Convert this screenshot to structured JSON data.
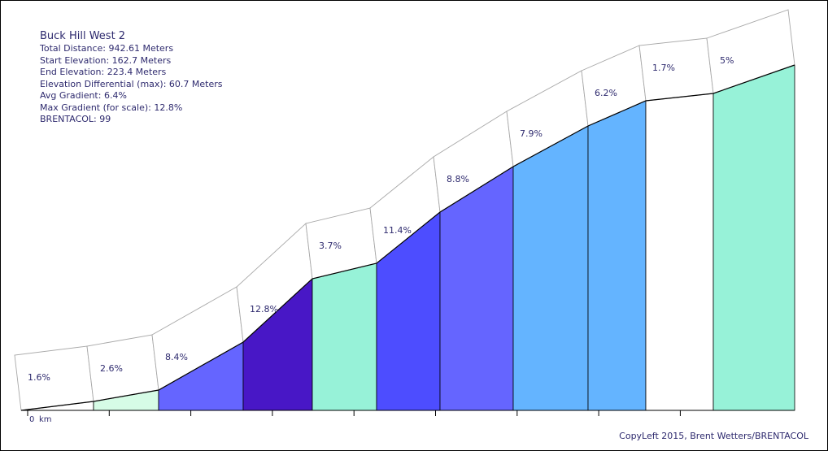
{
  "info": {
    "title": "Buck Hill West 2",
    "total_distance": "Total Distance: 942.61 Meters",
    "start_elevation": "Start Elevation: 162.7 Meters",
    "end_elevation": "End Elevation: 223.4 Meters",
    "elevation_diff": "Elevation Differential (max): 60.7 Meters",
    "avg_gradient": "Avg Gradient: 6.4%",
    "max_gradient": "Max Gradient (for scale): 12.8%",
    "brentacol": "BRENTACOL: 99"
  },
  "credit": "CopyLeft 2015, Brent Wetters/BRENTACOL",
  "chart_data": {
    "type": "area",
    "xlabel": "km",
    "x_tick_labels": [
      "0"
    ],
    "distance_m": 942.61,
    "segments": [
      {
        "label": "1.6%",
        "gradient": 1.6,
        "color": "#ffffff"
      },
      {
        "label": "2.6%",
        "gradient": 2.6,
        "color": "#d6fce6"
      },
      {
        "label": "8.4%",
        "gradient": 8.4,
        "color": "#6565ff"
      },
      {
        "label": "12.8%",
        "gradient": 12.8,
        "color": "#4817c6"
      },
      {
        "label": "3.7%",
        "gradient": 3.7,
        "color": "#97f2d8"
      },
      {
        "label": "11.4%",
        "gradient": 11.4,
        "color": "#4d4dff"
      },
      {
        "label": "8.8%",
        "gradient": 8.8,
        "color": "#6565ff"
      },
      {
        "label": "7.9%",
        "gradient": 7.9,
        "color": "#64b4ff"
      },
      {
        "label": "6.2%",
        "gradient": 6.2,
        "color": "#64b4ff"
      },
      {
        "label": "1.7%",
        "gradient": 1.7,
        "color": "#ffffff"
      },
      {
        "label": "5%",
        "gradient": 5.0,
        "color": "#97f2d8"
      }
    ]
  }
}
